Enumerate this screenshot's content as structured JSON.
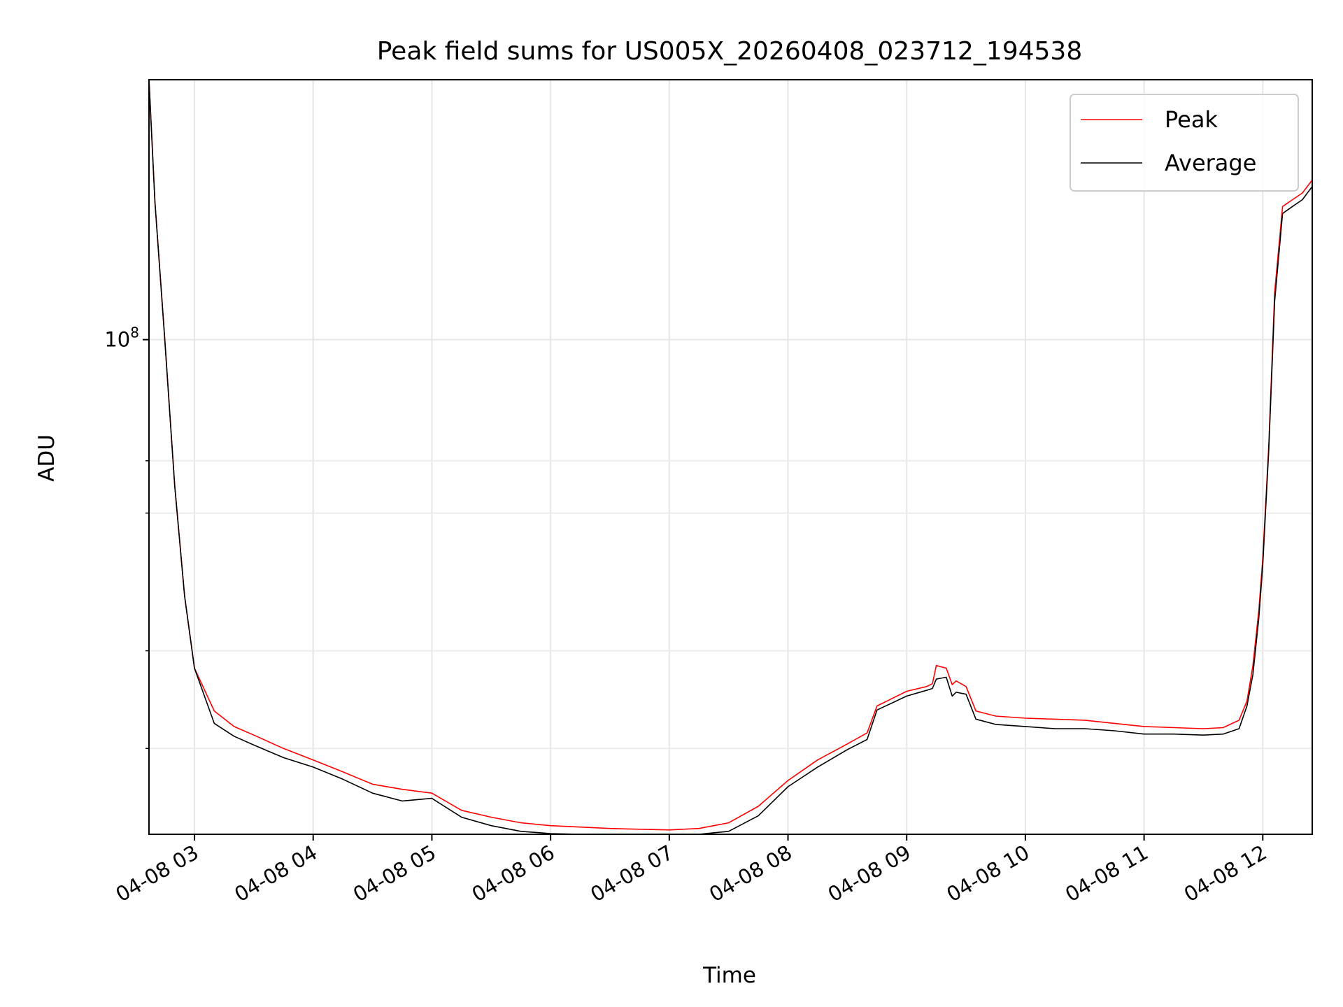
{
  "chart_data": {
    "type": "line",
    "title": "Peak field sums for US005X_20260408_023712_194538",
    "xlabel": "Time",
    "ylabel": "ADU",
    "yscale": "log",
    "grid": true,
    "legend_position": "top-right",
    "xlim": [
      "2026-04-08 02:37",
      "2026-04-08 12:25"
    ],
    "ylim": [
      23300000,
      215000000
    ],
    "x_ticks": [
      "04-08 03",
      "04-08 04",
      "04-08 05",
      "04-08 06",
      "04-08 07",
      "04-08 08",
      "04-08 09",
      "04-08 10",
      "04-08 11",
      "04-08 12"
    ],
    "y_ticks": [
      {
        "value": 100000000,
        "base": "10",
        "exp": "8"
      }
    ],
    "y_minor_ticks": [
      30000000,
      40000000,
      60000000,
      70000000
    ],
    "x": [
      "02:37",
      "02:40",
      "02:45",
      "02:50",
      "02:55",
      "03:00",
      "03:10",
      "03:20",
      "03:30",
      "03:45",
      "04:00",
      "04:15",
      "04:30",
      "04:45",
      "05:00",
      "05:15",
      "05:30",
      "05:45",
      "06:00",
      "06:15",
      "06:30",
      "06:45",
      "07:00",
      "07:15",
      "07:30",
      "07:45",
      "08:00",
      "08:15",
      "08:30",
      "08:40",
      "08:45",
      "09:00",
      "09:10",
      "09:13",
      "09:15",
      "09:20",
      "09:23",
      "09:25",
      "09:30",
      "09:35",
      "09:45",
      "10:00",
      "10:15",
      "10:30",
      "10:45",
      "11:00",
      "11:15",
      "11:30",
      "11:40",
      "11:48",
      "11:52",
      "11:55",
      "11:58",
      "12:00",
      "12:03",
      "12:06",
      "12:10",
      "12:15",
      "12:20",
      "12:25"
    ],
    "series": [
      {
        "name": "Peak",
        "color": "#ff0000",
        "values": [
          215000000,
          150000000,
          100000000,
          65000000,
          47000000,
          38000000,
          33500000,
          32000000,
          31200000,
          30000000,
          29000000,
          28000000,
          27000000,
          26600000,
          26300000,
          25000000,
          24500000,
          24100000,
          23900000,
          23800000,
          23700000,
          23650000,
          23600000,
          23700000,
          24100000,
          25300000,
          27300000,
          29000000,
          30400000,
          31400000,
          34000000,
          35500000,
          36000000,
          36300000,
          38300000,
          38000000,
          36200000,
          36600000,
          36000000,
          33500000,
          33000000,
          32800000,
          32700000,
          32600000,
          32300000,
          32000000,
          31900000,
          31800000,
          31900000,
          32600000,
          34500000,
          38300000,
          45000000,
          52500000,
          73000000,
          115000000,
          148000000,
          151000000,
          154000000,
          160000000
        ]
      },
      {
        "name": "Average",
        "color": "#000000",
        "values": [
          215000000,
          150000000,
          100000000,
          65000000,
          47000000,
          38000000,
          32300000,
          31100000,
          30300000,
          29200000,
          28400000,
          27400000,
          26300000,
          25700000,
          25900000,
          24500000,
          23900000,
          23500000,
          23350000,
          23200000,
          23150000,
          23100000,
          23100000,
          23150000,
          23500000,
          24600000,
          26800000,
          28400000,
          29900000,
          30800000,
          33600000,
          35000000,
          35600000,
          35800000,
          36800000,
          37000000,
          35000000,
          35400000,
          35200000,
          32700000,
          32200000,
          32000000,
          31800000,
          31800000,
          31600000,
          31300000,
          31300000,
          31200000,
          31300000,
          31800000,
          34000000,
          37300000,
          44000000,
          51500000,
          72000000,
          112000000,
          145000000,
          148000000,
          151000000,
          157000000
        ]
      }
    ]
  }
}
